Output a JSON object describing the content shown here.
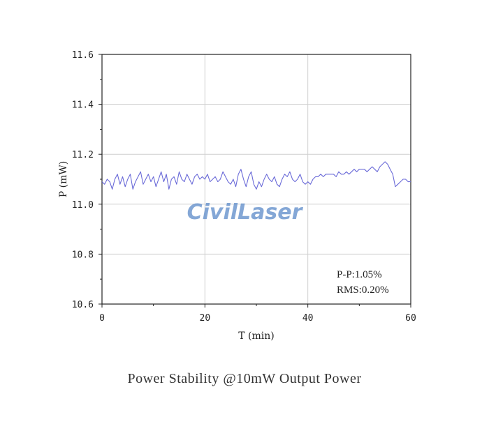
{
  "caption": "Power Stability @10mW Output Power",
  "watermark": "CivilLaser",
  "chart_data": {
    "type": "line",
    "title": "",
    "xlabel": "T (min)",
    "ylabel": "P (mW)",
    "xlim": [
      0,
      60
    ],
    "ylim": [
      10.6,
      11.6
    ],
    "xticks": [
      0,
      20,
      40,
      60
    ],
    "xtick_labels": [
      "0",
      "20",
      "40",
      "60"
    ],
    "yticks": [
      10.6,
      10.8,
      11.0,
      11.2,
      11.4,
      11.6
    ],
    "ytick_labels": [
      "10.6",
      "10.8",
      "11.0",
      "11.2",
      "11.4",
      "11.6"
    ],
    "grid": true,
    "annotations": [
      "P-P:1.05%",
      "RMS:0.20%"
    ],
    "line_color": "#6a6ad8",
    "series": [
      {
        "x": [
          0,
          0.5,
          1,
          1.5,
          2,
          2.5,
          3,
          3.5,
          4,
          4.5,
          5,
          5.5,
          6,
          6.5,
          7,
          7.5,
          8,
          8.5,
          9,
          9.5,
          10,
          10.5,
          11,
          11.5,
          12,
          12.5,
          13,
          13.5,
          14,
          14.5,
          15,
          15.5,
          16,
          16.5,
          17,
          17.5,
          18,
          18.5,
          19,
          19.5,
          20,
          20.5,
          21,
          21.5,
          22,
          22.5,
          23,
          23.5,
          24,
          24.5,
          25,
          25.5,
          26,
          26.5,
          27,
          27.5,
          28,
          28.5,
          29,
          29.5,
          30,
          30.5,
          31,
          31.5,
          32,
          32.5,
          33,
          33.5,
          34,
          34.5,
          35,
          35.5,
          36,
          36.5,
          37,
          37.5,
          38,
          38.5,
          39,
          39.5,
          40,
          40.5,
          41,
          41.5,
          42,
          42.5,
          43,
          43.5,
          44,
          44.5,
          45,
          45.5,
          46,
          46.5,
          47,
          47.5,
          48,
          48.5,
          49,
          49.5,
          50,
          50.5,
          51,
          51.5,
          52,
          52.5,
          53,
          53.5,
          54,
          54.5,
          55,
          55.5,
          56,
          56.5,
          57,
          57.5,
          58,
          58.5,
          59,
          59.5,
          60
        ],
        "y": [
          11.09,
          11.08,
          11.1,
          11.09,
          11.06,
          11.1,
          11.12,
          11.08,
          11.11,
          11.07,
          11.1,
          11.12,
          11.06,
          11.09,
          11.11,
          11.13,
          11.08,
          11.1,
          11.12,
          11.09,
          11.11,
          11.07,
          11.1,
          11.13,
          11.09,
          11.12,
          11.06,
          11.1,
          11.11,
          11.08,
          11.13,
          11.1,
          11.09,
          11.12,
          11.1,
          11.08,
          11.11,
          11.12,
          11.1,
          11.11,
          11.1,
          11.12,
          11.09,
          11.1,
          11.11,
          11.09,
          11.1,
          11.13,
          11.11,
          11.09,
          11.08,
          11.1,
          11.07,
          11.12,
          11.14,
          11.1,
          11.07,
          11.11,
          11.13,
          11.08,
          11.06,
          11.09,
          11.07,
          11.1,
          11.12,
          11.1,
          11.09,
          11.11,
          11.08,
          11.07,
          11.1,
          11.12,
          11.11,
          11.13,
          11.1,
          11.09,
          11.1,
          11.12,
          11.09,
          11.08,
          11.09,
          11.08,
          11.1,
          11.11,
          11.11,
          11.12,
          11.11,
          11.12,
          11.12,
          11.12,
          11.12,
          11.11,
          11.13,
          11.12,
          11.12,
          11.13,
          11.12,
          11.13,
          11.14,
          11.13,
          11.14,
          11.14,
          11.14,
          11.13,
          11.14,
          11.15,
          11.14,
          11.13,
          11.15,
          11.16,
          11.17,
          11.16,
          11.14,
          11.12,
          11.07,
          11.08,
          11.09,
          11.1,
          11.1,
          11.09,
          11.09
        ]
      }
    ]
  }
}
